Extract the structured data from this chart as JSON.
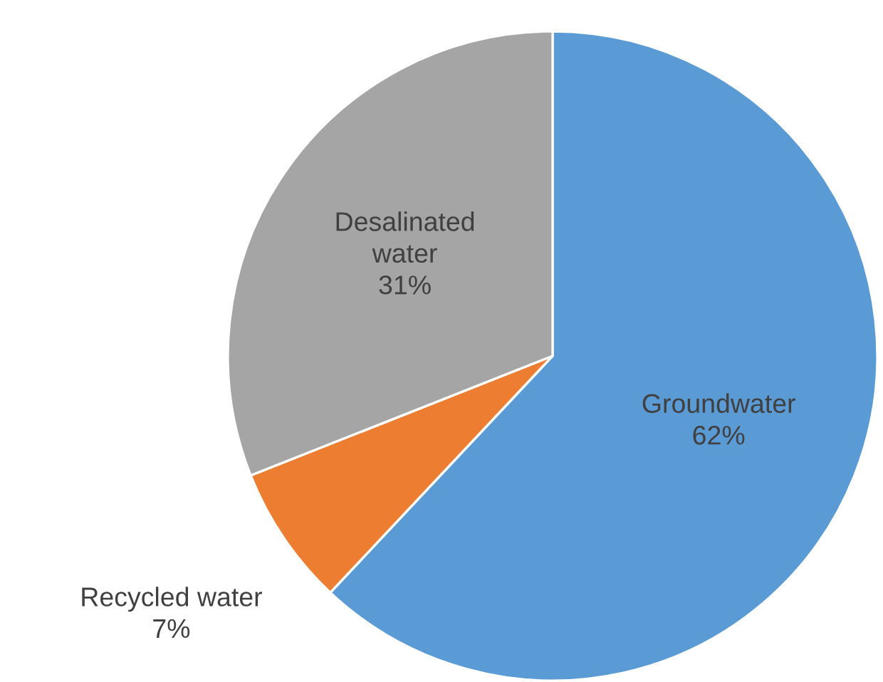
{
  "chart_data": {
    "type": "pie",
    "categories": [
      "Groundwater",
      "Recycled water",
      "Desalinated water"
    ],
    "values": [
      62,
      7,
      31
    ],
    "value_labels": [
      "62%",
      "7%",
      "31%"
    ],
    "colors": [
      "#5b9bd5",
      "#ed7d31",
      "#a5a5a5"
    ],
    "legend": false
  }
}
